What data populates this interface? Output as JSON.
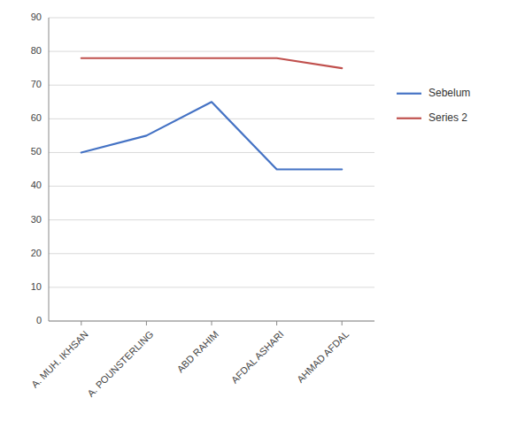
{
  "chart_data": {
    "type": "line",
    "categories": [
      "A. MUH. IKHSAN",
      "A. POUNSTERLING",
      "ABD RAHIM",
      "AFDAL ASHARI",
      "AHMAD AFDAL"
    ],
    "series": [
      {
        "name": "Sebelum",
        "color": "#4472C4",
        "values": [
          50,
          55,
          65,
          45,
          45
        ]
      },
      {
        "name": "Series 2",
        "color": "#C0504D",
        "values": [
          78,
          78,
          78,
          78,
          75
        ]
      }
    ],
    "ylim": [
      0,
      90
    ],
    "yticks": [
      0,
      10,
      20,
      30,
      40,
      50,
      60,
      70,
      80,
      90
    ],
    "grid": true,
    "legend": "right"
  }
}
